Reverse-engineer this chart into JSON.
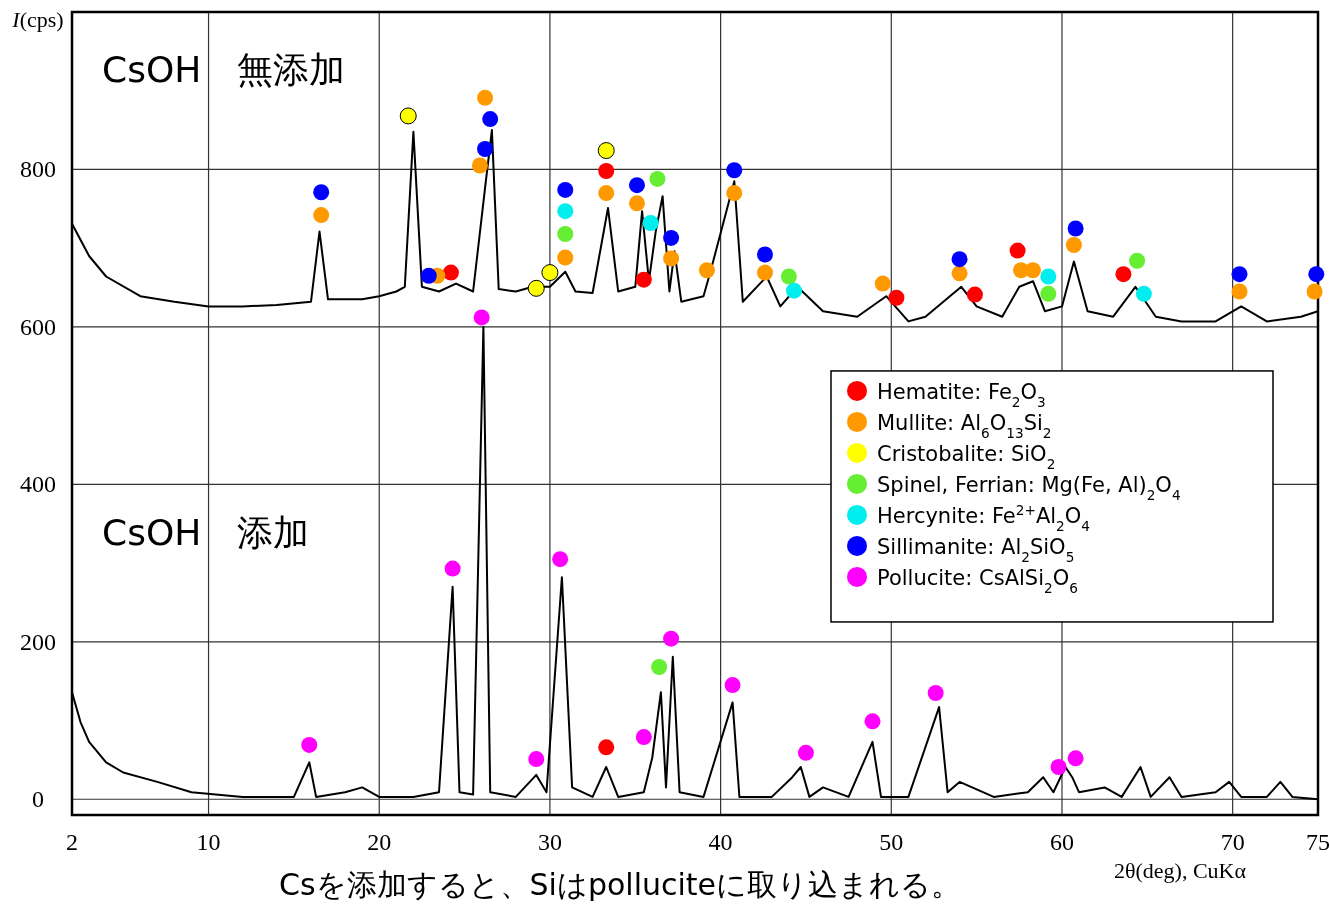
{
  "chart_data": {
    "type": "line",
    "xlabel": "2θ(deg), CuKα",
    "ylabel": "*I*(cps)",
    "xlim": [
      2,
      75
    ],
    "ylim": [
      -20,
      1000
    ],
    "xticks": [
      2,
      10,
      20,
      30,
      40,
      50,
      60,
      70,
      75
    ],
    "yticks": [
      0,
      200,
      400,
      600,
      800
    ],
    "grid": true,
    "legend": "right",
    "annotations": [
      "CsOH　無添加",
      "CsOH　添加",
      "Csを添加すると、Siはpolluciteに取り込まれる。"
    ],
    "series": [
      {
        "color": "#000000",
        "x": [
          2,
          3,
          4,
          6,
          8,
          10,
          12,
          14,
          16,
          16.5,
          17,
          19,
          20,
          21,
          21.5,
          22,
          22.5,
          23.5,
          24.5,
          25.5,
          26.2,
          26.6,
          27,
          28,
          29,
          30,
          30.9,
          31.5,
          32.5,
          33.4,
          34,
          35,
          35.4,
          35.8,
          36.2,
          36.6,
          37,
          37.3,
          37.7,
          39,
          39.4,
          40.8,
          41.3,
          42.7,
          43.5,
          44.5,
          46,
          48,
          49.7,
          51,
          52,
          54.1,
          55,
          56.5,
          57.5,
          58.3,
          59,
          60,
          60.7,
          61.5,
          63,
          64.3,
          65.5,
          67,
          69,
          70.5,
          72,
          74,
          75
        ],
        "values": [
          731,
          690,
          664,
          639,
          632,
          626,
          626,
          628,
          632,
          721,
          635,
          635,
          639,
          645,
          651,
          848,
          651,
          645,
          655,
          645,
          777,
          850,
          648,
          645,
          651,
          651,
          670,
          645,
          643,
          751,
          645,
          651,
          747,
          658,
          721,
          766,
          645,
          696,
          632,
          639,
          670,
          785,
          632,
          664,
          626,
          651,
          620,
          613,
          639,
          607,
          613,
          651,
          626,
          613,
          651,
          658,
          620,
          626,
          683,
          620,
          613,
          651,
          613,
          607,
          607,
          626,
          607,
          613,
          620
        ]
      },
      {
        "color": "#000000",
        "x": [
          2,
          2.5,
          3,
          4,
          5,
          7,
          9,
          12,
          15,
          15.9,
          16.3,
          18,
          19,
          20,
          22,
          23.5,
          24.3,
          24.7,
          25.5,
          26.1,
          26.5,
          28,
          29.2,
          29.8,
          30.7,
          31.3,
          32.5,
          33.3,
          34,
          35.5,
          36,
          36.5,
          36.8,
          37.2,
          37.6,
          39,
          40.7,
          41.1,
          43,
          44.2,
          44.7,
          45.2,
          46,
          47.5,
          48.9,
          49.4,
          51,
          52.8,
          53.3,
          54,
          56,
          58,
          58.9,
          59.5,
          60.2,
          60.6,
          61,
          62.5,
          63.5,
          64.6,
          65.2,
          66.3,
          67,
          69,
          69.8,
          70.5,
          72,
          72.8,
          73.5,
          75
        ],
        "values": [
          136,
          98,
          73,
          47,
          34,
          22,
          9,
          3,
          3,
          47,
          3,
          9,
          15,
          3,
          3,
          9,
          270,
          9,
          6,
          600,
          9,
          3,
          31,
          9,
          282,
          15,
          3,
          41,
          3,
          9,
          53,
          136,
          15,
          181,
          9,
          3,
          123,
          3,
          3,
          28,
          41,
          3,
          15,
          3,
          73,
          3,
          3,
          117,
          9,
          22,
          3,
          9,
          28,
          9,
          41,
          28,
          9,
          15,
          3,
          41,
          3,
          28,
          3,
          9,
          22,
          3,
          3,
          22,
          3,
          0
        ]
      },
      {
        "name": "Hematite: Fe$_{2}$O$_{3}$",
        "type": "scatter",
        "color": "#ff0000",
        "x": [
          24.2,
          33.3,
          35.5,
          50.3,
          54.9,
          57.4,
          63.6,
          33.3
        ],
        "values": [
          669,
          798,
          660,
          637,
          641,
          697,
          667,
          66
        ]
      },
      {
        "name": "Mullite: Al$_{6}$O$_{13}$Si$_{2}$",
        "type": "scatter",
        "color": "#ff9900",
        "x": [
          16.6,
          23.4,
          25.9,
          26.2,
          30.9,
          33.3,
          35.1,
          37.1,
          39.2,
          40.8,
          42.6,
          49.5,
          54.0,
          57.6,
          58.3,
          60.7,
          70.4,
          74.8
        ],
        "values": [
          742,
          665,
          805,
          891,
          688,
          770,
          757,
          687,
          672,
          770,
          669,
          655,
          668,
          672,
          672,
          704,
          645,
          645
        ]
      },
      {
        "name": "Cristobalite: SiO$_{2}$",
        "type": "scatter",
        "color": "#ffff00",
        "x": [
          21.7,
          29.2,
          30.0,
          33.3
        ],
        "values": [
          868,
          649,
          669,
          824
        ]
      },
      {
        "name": "Spinel, Ferrian: Mg(Fe, Al)$_{2}$O$_{4}$",
        "type": "scatter",
        "color": "#66ee33",
        "x": [
          30.9,
          36.3,
          44.0,
          59.2,
          64.4,
          36.4
        ],
        "values": [
          718,
          788,
          664,
          642,
          684,
          168
        ]
      },
      {
        "name": "Hercynite: Fe$^{2+}$Al$_{2}$O$_{4}$",
        "type": "scatter",
        "color": "#00eeee",
        "x": [
          30.9,
          35.9,
          44.3,
          59.2,
          64.8
        ],
        "values": [
          747,
          732,
          646,
          664,
          642
        ]
      },
      {
        "name": "Sillimanite: Al$_{2}$SiO$_{5}$",
        "type": "scatter",
        "color": "#0000ff",
        "x": [
          16.6,
          22.9,
          26.2,
          26.5,
          30.9,
          35.1,
          37.1,
          40.8,
          42.6,
          54.0,
          60.8,
          70.4,
          74.9
        ],
        "values": [
          771,
          665,
          826,
          864,
          774,
          780,
          713,
          799,
          692,
          686,
          725,
          667,
          667
        ]
      },
      {
        "name": "Pollucite: CsAlSi$_{2}$O$_{6}$",
        "type": "scatter",
        "color": "#ff00ff",
        "x": [
          26.0,
          15.9,
          24.3,
          29.2,
          30.6,
          35.5,
          37.1,
          40.7,
          45.0,
          48.9,
          52.6,
          59.8,
          60.8
        ],
        "values": [
          612,
          69,
          293,
          51,
          305,
          79,
          204,
          145,
          59,
          99,
          135,
          41,
          52
        ]
      }
    ]
  }
}
